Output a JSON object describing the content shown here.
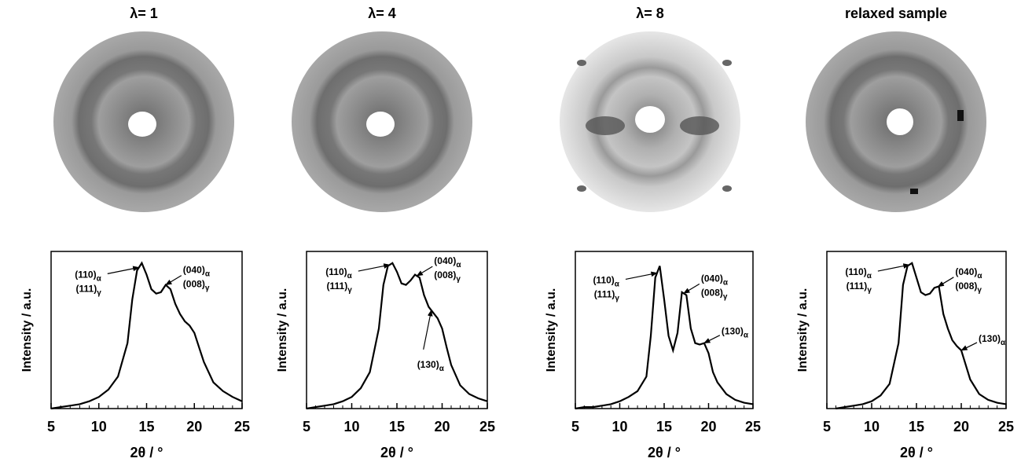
{
  "chart_data": [
    {
      "type": "line",
      "title": "λ= 1",
      "xlabel": "2θ / °",
      "ylabel": "Intensity / a.u.",
      "xlim": [
        5,
        25
      ],
      "xticks": [
        5,
        10,
        15,
        20,
        25
      ],
      "ylim": [
        0,
        108
      ],
      "color": "#000000",
      "x": [
        5,
        6,
        7,
        8,
        9,
        10,
        11,
        12,
        13,
        13.5,
        14,
        14.5,
        15,
        15.5,
        16,
        16.5,
        17,
        17.5,
        18,
        18.5,
        19,
        19.5,
        20,
        20.5,
        21,
        22,
        23,
        24,
        25
      ],
      "values": [
        0,
        1,
        2,
        3,
        5,
        8,
        13,
        22,
        45,
        75,
        95,
        100,
        92,
        82,
        79,
        80,
        85,
        82,
        72,
        65,
        60,
        57,
        52,
        42,
        32,
        18,
        12,
        8,
        5
      ],
      "annotations": [
        {
          "x": 14.2,
          "labels": [
            {
              "text": "(110)",
              "sub": "α"
            },
            {
              "text": "(111)",
              "sub": "γ"
            }
          ]
        },
        {
          "x": 17,
          "labels": [
            {
              "text": "(040)",
              "sub": "α"
            },
            {
              "text": "(008)",
              "sub": "γ"
            }
          ]
        }
      ]
    },
    {
      "type": "line",
      "title": "λ= 4",
      "xlabel": "2θ / °",
      "ylabel": "Intensity / a.u.",
      "xlim": [
        5,
        25
      ],
      "xticks": [
        5,
        10,
        15,
        20,
        25
      ],
      "ylim": [
        0,
        108
      ],
      "color": "#000000",
      "x": [
        5,
        6,
        7,
        8,
        9,
        10,
        11,
        12,
        13,
        13.5,
        14,
        14.5,
        15,
        15.5,
        16,
        16.5,
        17,
        17.5,
        18,
        18.5,
        19,
        19.5,
        20,
        20.5,
        21,
        22,
        23,
        24,
        25
      ],
      "values": [
        0,
        1,
        2,
        3,
        5,
        8,
        14,
        25,
        55,
        85,
        98,
        100,
        94,
        86,
        85,
        88,
        92,
        90,
        78,
        70,
        66,
        62,
        55,
        42,
        30,
        16,
        10,
        7,
        5
      ],
      "annotations": [
        {
          "x": 14.2,
          "labels": [
            {
              "text": "(110)",
              "sub": "α"
            },
            {
              "text": "(111)",
              "sub": "γ"
            }
          ]
        },
        {
          "x": 17.2,
          "labels": [
            {
              "text": "(040)",
              "sub": "α"
            },
            {
              "text": "(008)",
              "sub": "γ"
            }
          ]
        },
        {
          "x": 18.8,
          "labels": [
            {
              "text": "(130)",
              "sub": "α"
            }
          ]
        }
      ]
    },
    {
      "type": "line",
      "title": "λ= 8",
      "xlabel": "2θ / °",
      "ylabel": "Intensity / a.u.",
      "xlim": [
        5,
        25
      ],
      "xticks": [
        5,
        10,
        15,
        20,
        25
      ],
      "ylim": [
        0,
        108
      ],
      "color": "#000000",
      "x": [
        5,
        6,
        7,
        8,
        9,
        10,
        11,
        12,
        13,
        13.5,
        14,
        14.5,
        15,
        15.5,
        16,
        16.5,
        17,
        17.5,
        18,
        18.5,
        19,
        19.5,
        20,
        20.5,
        21,
        22,
        23,
        24,
        25
      ],
      "values": [
        0,
        1,
        1,
        2,
        3,
        5,
        8,
        12,
        22,
        50,
        90,
        98,
        75,
        50,
        40,
        52,
        80,
        78,
        55,
        45,
        44,
        45,
        38,
        25,
        18,
        10,
        6,
        4,
        3
      ],
      "annotations": [
        {
          "x": 14.2,
          "labels": [
            {
              "text": "(110)",
              "sub": "α"
            },
            {
              "text": "(111)",
              "sub": "γ"
            }
          ]
        },
        {
          "x": 17.2,
          "labels": [
            {
              "text": "(040)",
              "sub": "α"
            },
            {
              "text": "(008)",
              "sub": "γ"
            }
          ]
        },
        {
          "x": 19.5,
          "labels": [
            {
              "text": "(130)",
              "sub": "α"
            }
          ]
        }
      ]
    },
    {
      "type": "line",
      "title": "relaxed sample",
      "xlabel": "2θ / °",
      "ylabel": "Intensity / a.u.",
      "xlim": [
        5,
        25
      ],
      "xticks": [
        5,
        10,
        15,
        20,
        25
      ],
      "ylim": [
        0,
        108
      ],
      "color": "#000000",
      "x": [
        5,
        6,
        7,
        8,
        9,
        10,
        11,
        12,
        13,
        13.5,
        14,
        14.5,
        15,
        15.5,
        16,
        16.5,
        17,
        17.5,
        18,
        18.5,
        19,
        19.5,
        20,
        20.5,
        21,
        22,
        23,
        24,
        25
      ],
      "values": [
        null,
        0,
        1,
        2,
        3,
        5,
        9,
        17,
        45,
        85,
        98,
        100,
        90,
        80,
        78,
        79,
        83,
        84,
        65,
        55,
        47,
        43,
        40,
        30,
        20,
        10,
        6,
        4,
        3
      ],
      "annotations": [
        {
          "x": 14.2,
          "labels": [
            {
              "text": "(110)",
              "sub": "α"
            },
            {
              "text": "(111)",
              "sub": "γ"
            }
          ]
        },
        {
          "x": 17.4,
          "labels": [
            {
              "text": "(040)",
              "sub": "α"
            },
            {
              "text": "(008)",
              "sub": "γ"
            }
          ]
        },
        {
          "x": 20,
          "labels": [
            {
              "text": "(130)",
              "sub": "α"
            }
          ]
        }
      ]
    }
  ]
}
